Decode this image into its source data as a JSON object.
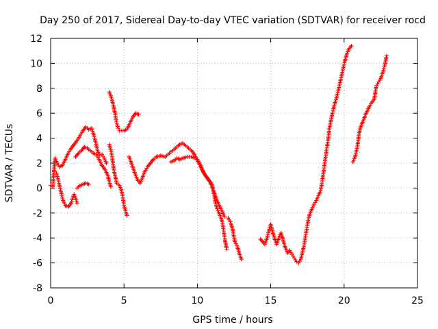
{
  "chart_data": {
    "type": "scatter",
    "title": "Day 250 of 2017, Sidereal Day-to-day VTEC variation (SDTVAR) for receiver rocd",
    "xlabel": "GPS time / hours",
    "ylabel": "SDTVAR / TECUs",
    "xlim": [
      0,
      25
    ],
    "ylim": [
      -8,
      12
    ],
    "xticks": [
      0,
      5,
      10,
      15,
      20,
      25
    ],
    "yticks": [
      -8,
      -6,
      -4,
      -2,
      0,
      2,
      4,
      6,
      8,
      10,
      12
    ],
    "grid": true,
    "marker": "plus",
    "color": "#ff0000",
    "series": [
      {
        "points": [
          [
            0.0,
            0.2
          ],
          [
            0.15,
            0.1
          ],
          [
            0.3,
            2.4
          ],
          [
            0.45,
            2.0
          ],
          [
            0.6,
            1.7
          ],
          [
            0.8,
            1.8
          ],
          [
            1.0,
            2.3
          ],
          [
            1.2,
            2.8
          ],
          [
            1.4,
            3.2
          ],
          [
            1.6,
            3.5
          ],
          [
            1.8,
            3.8
          ],
          [
            2.0,
            4.2
          ],
          [
            2.2,
            4.6
          ],
          [
            2.4,
            4.9
          ],
          [
            2.6,
            4.7
          ],
          [
            2.8,
            4.8
          ],
          [
            2.9,
            4.4
          ],
          [
            3.0,
            4.0
          ],
          [
            3.1,
            3.5
          ],
          [
            3.2,
            3.0
          ],
          [
            3.35,
            2.6
          ],
          [
            3.5,
            2.7
          ],
          [
            3.65,
            2.4
          ],
          [
            3.8,
            2.0
          ]
        ]
      },
      {
        "points": [
          [
            0.4,
            1.2
          ],
          [
            0.55,
            0.5
          ],
          [
            0.7,
            -0.3
          ],
          [
            0.85,
            -1.0
          ],
          [
            1.0,
            -1.4
          ],
          [
            1.2,
            -1.5
          ],
          [
            1.4,
            -1.2
          ],
          [
            1.5,
            -0.8
          ],
          [
            1.6,
            -0.5
          ],
          [
            1.7,
            -0.8
          ],
          [
            1.8,
            -1.2
          ]
        ]
      },
      {
        "points": [
          [
            1.7,
            2.5
          ],
          [
            1.9,
            2.8
          ],
          [
            2.1,
            3.0
          ],
          [
            2.3,
            3.3
          ],
          [
            2.5,
            3.2
          ],
          [
            2.7,
            3.0
          ],
          [
            2.9,
            2.8
          ],
          [
            3.1,
            2.7
          ],
          [
            3.3,
            2.3
          ],
          [
            3.5,
            1.8
          ],
          [
            3.7,
            1.5
          ],
          [
            3.9,
            1.0
          ],
          [
            4.0,
            0.5
          ],
          [
            4.1,
            0.1
          ]
        ]
      },
      {
        "points": [
          [
            1.8,
            0.0
          ],
          [
            2.0,
            0.2
          ],
          [
            2.2,
            0.3
          ],
          [
            2.4,
            0.4
          ],
          [
            2.6,
            0.3
          ]
        ]
      },
      {
        "points": [
          [
            4.0,
            7.7
          ],
          [
            4.1,
            7.4
          ],
          [
            4.2,
            7.0
          ],
          [
            4.3,
            6.5
          ],
          [
            4.4,
            5.9
          ],
          [
            4.5,
            5.2
          ],
          [
            4.6,
            4.8
          ],
          [
            4.7,
            4.6
          ],
          [
            4.85,
            4.6
          ],
          [
            5.0,
            4.6
          ],
          [
            5.2,
            4.7
          ],
          [
            5.4,
            5.2
          ],
          [
            5.6,
            5.7
          ],
          [
            5.8,
            6.0
          ],
          [
            6.0,
            5.9
          ]
        ]
      },
      {
        "points": [
          [
            4.0,
            3.5
          ],
          [
            4.15,
            2.8
          ],
          [
            4.3,
            1.5
          ],
          [
            4.5,
            0.4
          ],
          [
            4.7,
            0.2
          ],
          [
            4.8,
            -0.1
          ],
          [
            4.9,
            -0.6
          ],
          [
            5.0,
            -1.4
          ],
          [
            5.1,
            -1.8
          ],
          [
            5.2,
            -2.2
          ]
        ]
      },
      {
        "points": [
          [
            5.35,
            2.5
          ],
          [
            5.5,
            2.0
          ],
          [
            5.65,
            1.5
          ],
          [
            5.8,
            1.0
          ],
          [
            5.95,
            0.6
          ],
          [
            6.1,
            0.4
          ],
          [
            6.25,
            0.8
          ],
          [
            6.4,
            1.3
          ],
          [
            6.6,
            1.7
          ],
          [
            6.8,
            2.0
          ],
          [
            7.0,
            2.3
          ],
          [
            7.2,
            2.5
          ],
          [
            7.5,
            2.6
          ],
          [
            7.8,
            2.5
          ],
          [
            8.0,
            2.7
          ],
          [
            8.2,
            2.9
          ],
          [
            8.4,
            3.1
          ],
          [
            8.6,
            3.3
          ],
          [
            8.8,
            3.5
          ],
          [
            9.0,
            3.6
          ],
          [
            9.2,
            3.4
          ],
          [
            9.4,
            3.2
          ],
          [
            9.6,
            3.0
          ],
          [
            9.8,
            2.7
          ],
          [
            10.0,
            2.3
          ],
          [
            10.2,
            1.9
          ],
          [
            10.4,
            1.3
          ],
          [
            10.6,
            0.9
          ],
          [
            10.8,
            0.6
          ],
          [
            11.0,
            0.3
          ],
          [
            11.1,
            -0.3
          ],
          [
            11.2,
            -1.0
          ],
          [
            11.3,
            -1.5
          ],
          [
            11.4,
            -1.8
          ],
          [
            11.55,
            -2.2
          ],
          [
            11.7,
            -2.7
          ],
          [
            11.8,
            -3.5
          ],
          [
            11.9,
            -4.3
          ],
          [
            12.0,
            -4.9
          ]
        ]
      },
      {
        "points": [
          [
            8.2,
            2.1
          ],
          [
            8.4,
            2.2
          ],
          [
            8.6,
            2.4
          ],
          [
            8.8,
            2.3
          ],
          [
            9.0,
            2.4
          ],
          [
            9.3,
            2.5
          ],
          [
            9.6,
            2.5
          ],
          [
            9.9,
            2.4
          ],
          [
            10.1,
            2.0
          ],
          [
            10.3,
            1.5
          ],
          [
            10.5,
            1.1
          ],
          [
            10.7,
            0.8
          ],
          [
            10.9,
            0.4
          ],
          [
            11.1,
            -0.2
          ],
          [
            11.3,
            -0.9
          ],
          [
            11.5,
            -1.4
          ],
          [
            11.7,
            -1.9
          ],
          [
            11.85,
            -2.3
          ]
        ]
      },
      {
        "points": [
          [
            12.1,
            -2.4
          ],
          [
            12.25,
            -2.7
          ],
          [
            12.4,
            -3.3
          ],
          [
            12.55,
            -4.3
          ],
          [
            12.7,
            -4.6
          ],
          [
            12.85,
            -5.2
          ],
          [
            13.0,
            -5.7
          ]
        ]
      },
      {
        "points": [
          [
            14.3,
            -4.1
          ],
          [
            14.45,
            -4.3
          ],
          [
            14.6,
            -4.5
          ],
          [
            14.75,
            -4.0
          ],
          [
            14.9,
            -3.3
          ],
          [
            15.0,
            -2.9
          ],
          [
            15.1,
            -3.4
          ],
          [
            15.25,
            -4.0
          ],
          [
            15.4,
            -4.5
          ],
          [
            15.55,
            -4.0
          ],
          [
            15.7,
            -3.6
          ],
          [
            15.85,
            -4.2
          ],
          [
            16.0,
            -4.8
          ],
          [
            16.15,
            -5.2
          ],
          [
            16.3,
            -5.0
          ],
          [
            16.45,
            -5.3
          ],
          [
            16.6,
            -5.6
          ],
          [
            16.75,
            -5.9
          ],
          [
            16.9,
            -6.0
          ],
          [
            17.05,
            -5.7
          ],
          [
            17.15,
            -5.2
          ],
          [
            17.25,
            -4.7
          ],
          [
            17.35,
            -4.0
          ],
          [
            17.45,
            -3.3
          ],
          [
            17.55,
            -2.6
          ],
          [
            17.65,
            -2.1
          ],
          [
            17.8,
            -1.7
          ],
          [
            17.95,
            -1.3
          ],
          [
            18.1,
            -1.0
          ],
          [
            18.25,
            -0.6
          ],
          [
            18.4,
            -0.2
          ],
          [
            18.5,
            0.5
          ],
          [
            18.6,
            1.3
          ],
          [
            18.7,
            2.2
          ],
          [
            18.8,
            3.0
          ],
          [
            18.9,
            3.8
          ],
          [
            19.0,
            4.8
          ],
          [
            19.15,
            5.7
          ],
          [
            19.3,
            6.5
          ],
          [
            19.45,
            7.1
          ],
          [
            19.6,
            7.8
          ],
          [
            19.75,
            8.6
          ],
          [
            19.9,
            9.4
          ],
          [
            20.05,
            10.2
          ],
          [
            20.2,
            10.8
          ],
          [
            20.35,
            11.2
          ],
          [
            20.5,
            11.4
          ]
        ]
      },
      {
        "points": [
          [
            20.6,
            2.1
          ],
          [
            20.75,
            2.5
          ],
          [
            20.9,
            3.3
          ],
          [
            21.0,
            4.2
          ],
          [
            21.1,
            4.8
          ],
          [
            21.3,
            5.4
          ],
          [
            21.5,
            6.0
          ],
          [
            21.7,
            6.5
          ],
          [
            21.9,
            6.9
          ],
          [
            22.05,
            7.1
          ],
          [
            22.2,
            8.2
          ],
          [
            22.35,
            8.5
          ],
          [
            22.5,
            8.8
          ],
          [
            22.65,
            9.3
          ],
          [
            22.8,
            10.0
          ],
          [
            22.9,
            10.6
          ]
        ]
      }
    ]
  }
}
